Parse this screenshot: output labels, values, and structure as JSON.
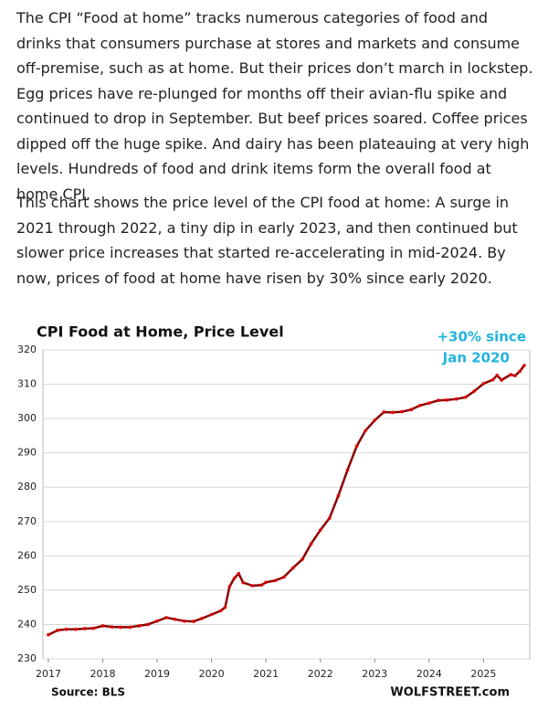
{
  "paragraphs": [
    "The CPI “Food at home” tracks numerous categories of food and drinks that consumers purchase at stores and markets and consume off-premise, such as at home. But their prices don’t march in lockstep. Egg prices have re-plunged for months off their avian-flu spike and continued to drop in September. But beef prices soared. Coffee prices dipped off the huge spike. And dairy has been plateauing at very high levels. Hundreds of food and drink items form the overall food at home CPI.",
    "This chart shows the price level of the CPI food at home: A surge in 2021 through 2022, a tiny dip in early 2023, and then continued but slower price increases that started re-accelerating in mid-2024. By now, prices of food at home have risen by 30% since early 2020."
  ],
  "chart_data": {
    "type": "line",
    "title": "CPI Food at Home, Price Level",
    "annotation": [
      "+30% since",
      "Jan 2020"
    ],
    "source": "Source: BLS",
    "credit": "WOLFSTREET.com",
    "x": [
      2017.0,
      2017.17,
      2017.33,
      2017.5,
      2017.67,
      2017.83,
      2018.0,
      2018.17,
      2018.33,
      2018.5,
      2018.67,
      2018.83,
      2019.0,
      2019.17,
      2019.33,
      2019.5,
      2019.67,
      2019.83,
      2020.0,
      2020.17,
      2020.25,
      2020.33,
      2020.42,
      2020.5,
      2020.58,
      2020.75,
      2020.92,
      2021.0,
      2021.17,
      2021.33,
      2021.5,
      2021.67,
      2021.83,
      2022.0,
      2022.17,
      2022.33,
      2022.5,
      2022.67,
      2022.83,
      2023.0,
      2023.17,
      2023.33,
      2023.5,
      2023.67,
      2023.83,
      2024.0,
      2024.17,
      2024.33,
      2024.5,
      2024.67,
      2024.83,
      2025.0,
      2025.17,
      2025.25,
      2025.33,
      2025.5,
      2025.58,
      2025.67,
      2025.75
    ],
    "values": [
      237,
      238.3,
      238.6,
      238.6,
      238.8,
      238.9,
      239.6,
      239.3,
      239.2,
      239.2,
      239.6,
      240,
      241,
      242,
      241.5,
      241,
      240.9,
      241.8,
      242.9,
      244,
      245,
      251,
      253.5,
      254.8,
      252.2,
      251.3,
      251.5,
      252.3,
      252.8,
      253.8,
      256.5,
      259,
      263.5,
      267.5,
      271,
      277.5,
      285,
      292,
      296.5,
      299.5,
      301.9,
      301.8,
      302,
      302.6,
      303.8,
      304.5,
      305.3,
      305.4,
      305.7,
      306.2,
      308,
      310.2,
      311.3,
      312.6,
      311.2,
      312.8,
      312.5,
      313.8,
      315.5
    ],
    "color": "#e00000",
    "line_color": "#8b0000",
    "xlim": [
      2016.9,
      2025.85
    ],
    "xticks": [
      2017,
      2018,
      2019,
      2020,
      2021,
      2022,
      2023,
      2024,
      2025
    ],
    "ylim": [
      230,
      320
    ],
    "yticks": [
      230,
      240,
      250,
      260,
      270,
      280,
      290,
      300,
      310,
      320
    ],
    "grid": true
  }
}
